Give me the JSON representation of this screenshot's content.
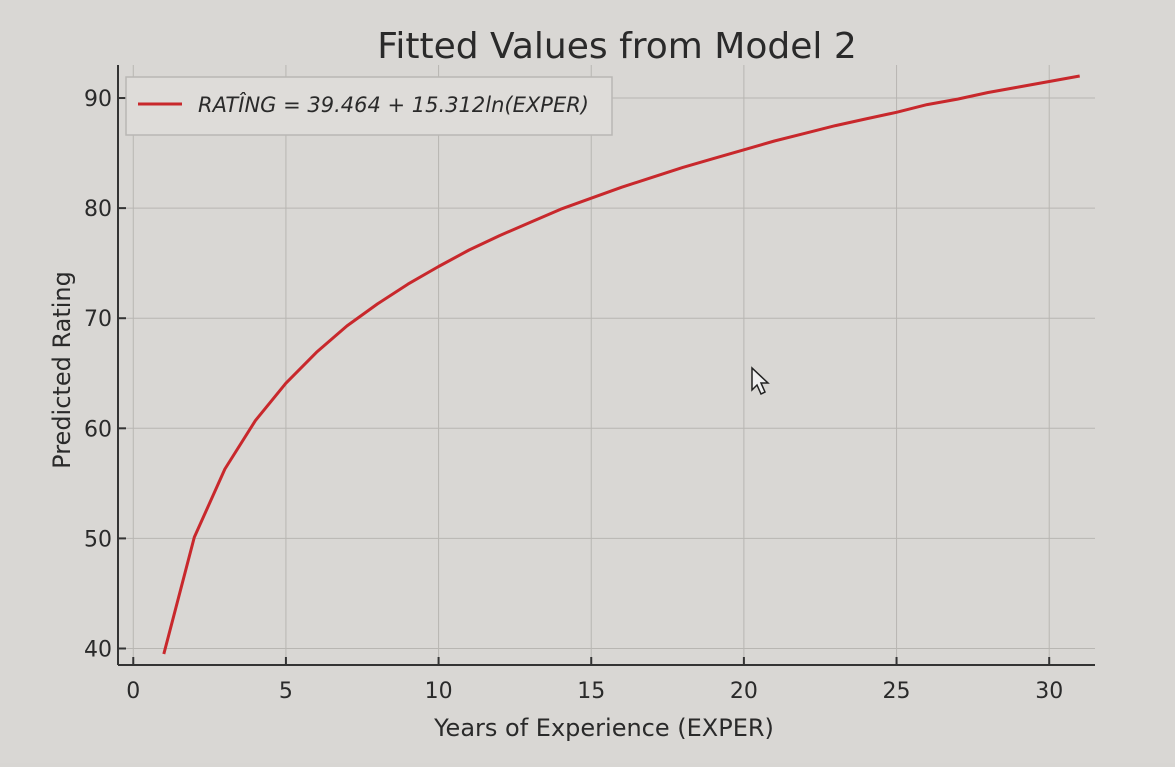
{
  "chart_data": {
    "type": "line",
    "title": "Fitted Values from Model 2",
    "xlabel": "Years of Experience (EXPER)",
    "ylabel": "Predicted Rating",
    "xlim": [
      -0.5,
      31.5
    ],
    "ylim": [
      38.5,
      93
    ],
    "x_ticks": [
      0,
      5,
      10,
      15,
      20,
      25,
      30
    ],
    "y_ticks": [
      40,
      50,
      60,
      70,
      80,
      90
    ],
    "grid": true,
    "legend_position": "top-left",
    "series": [
      {
        "name": "RATÎNG = 39.464 + 15.312ln(EXPER)",
        "color": "#c8282c",
        "x": [
          1,
          2,
          3,
          4,
          5,
          6,
          7,
          8,
          9,
          10,
          11,
          12,
          13,
          14,
          15,
          16,
          17,
          18,
          19,
          20,
          21,
          22,
          23,
          24,
          25,
          26,
          27,
          28,
          29,
          30,
          31
        ],
        "y": [
          39.5,
          50.1,
          56.3,
          60.7,
          64.1,
          66.9,
          69.3,
          71.3,
          73.1,
          74.7,
          76.2,
          77.5,
          78.7,
          79.9,
          80.9,
          81.9,
          82.8,
          83.7,
          84.5,
          85.3,
          86.1,
          86.8,
          87.5,
          88.1,
          88.7,
          89.4,
          89.9,
          90.5,
          91.0,
          91.5,
          92.0
        ]
      }
    ]
  }
}
